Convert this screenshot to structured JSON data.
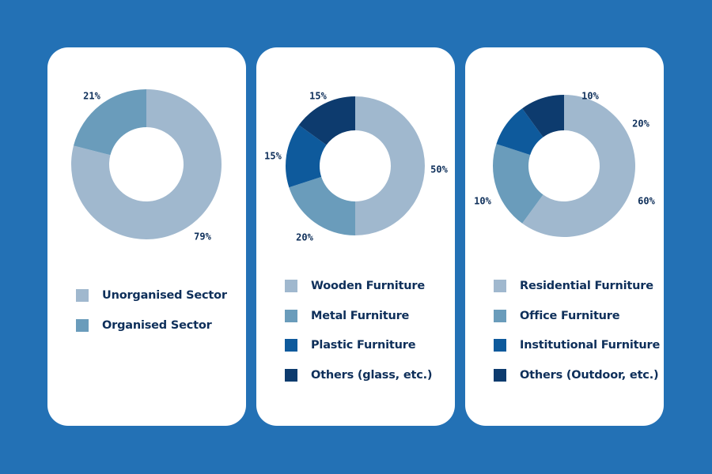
{
  "colors": {
    "background": "#2371b5",
    "card": "#ffffff",
    "text": "#0e2f5a",
    "light": "#a0b8ce",
    "medium": "#6a9cbb",
    "blue": "#0e5a9c",
    "dark": "#0d3b6e"
  },
  "chart_data": [
    {
      "type": "pie",
      "title": "",
      "categories": [
        "Unorganised Sector",
        "Organised Sector"
      ],
      "values": [
        79,
        21
      ],
      "labels": [
        "79%",
        "21%"
      ],
      "colors": [
        "#a0b8ce",
        "#6a9cbb"
      ],
      "donut": true,
      "legend": "bottom"
    },
    {
      "type": "pie",
      "title": "",
      "categories": [
        "Wooden Furniture",
        "Metal Furniture",
        "Plastic Furniture",
        "Others (glass, etc.)"
      ],
      "values": [
        50,
        20,
        15,
        15
      ],
      "labels": [
        "50%",
        "20%",
        "15%",
        "15%"
      ],
      "colors": [
        "#a0b8ce",
        "#6a9cbb",
        "#0e5a9c",
        "#0d3b6e"
      ],
      "donut": true,
      "legend": "bottom"
    },
    {
      "type": "pie",
      "title": "",
      "categories": [
        "Residential Furniture",
        "Office Furniture",
        "Institutional Furniture",
        "Others (Outdoor, etc.)"
      ],
      "values": [
        60,
        20,
        10,
        10
      ],
      "labels": [
        "60%",
        "20%",
        "10%",
        "10%"
      ],
      "colors": [
        "#a0b8ce",
        "#6a9cbb",
        "#0e5a9c",
        "#0d3b6e"
      ],
      "donut": true,
      "legend": "bottom"
    }
  ]
}
